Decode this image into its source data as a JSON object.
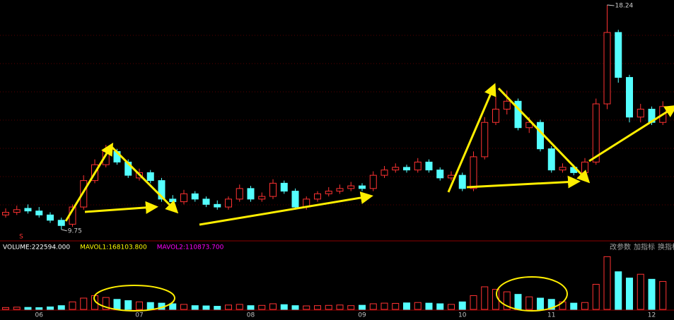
{
  "chart_data": {
    "type": "candlestick",
    "categories": [
      null,
      null,
      null,
      "06",
      null,
      null,
      null,
      null,
      null,
      null,
      null,
      null,
      "07",
      null,
      null,
      null,
      null,
      null,
      null,
      null,
      null,
      null,
      "08",
      null,
      null,
      null,
      null,
      null,
      null,
      null,
      null,
      null,
      "09",
      null,
      null,
      null,
      null,
      null,
      null,
      null,
      null,
      "10",
      null,
      null,
      null,
      null,
      null,
      null,
      null,
      "11",
      null,
      null,
      null,
      null,
      null,
      null,
      null,
      null,
      "12",
      null
    ],
    "open": [
      10.3,
      10.4,
      10.55,
      10.45,
      10.3,
      10.1,
      9.95,
      10.6,
      11.6,
      12.2,
      12.7,
      12.3,
      11.7,
      11.9,
      11.6,
      10.9,
      10.8,
      11.1,
      10.9,
      10.7,
      10.6,
      10.9,
      11.3,
      10.9,
      11.0,
      11.5,
      11.2,
      10.6,
      10.9,
      11.1,
      11.2,
      11.3,
      11.4,
      11.3,
      11.8,
      12.0,
      12.1,
      12.0,
      12.3,
      12.0,
      11.7,
      11.8,
      11.3,
      12.5,
      13.8,
      14.3,
      14.6,
      13.6,
      13.8,
      12.8,
      12.0,
      12.1,
      11.9,
      12.3,
      14.5,
      17.2,
      15.5,
      14.0,
      14.3,
      13.8
    ],
    "high": [
      10.55,
      10.65,
      10.7,
      10.6,
      10.4,
      10.2,
      10.7,
      11.8,
      12.4,
      12.95,
      12.8,
      12.4,
      12.05,
      12.0,
      11.7,
      11.05,
      11.25,
      11.2,
      11.0,
      10.85,
      11.0,
      11.45,
      11.4,
      11.15,
      11.65,
      11.6,
      11.3,
      11.0,
      11.2,
      11.35,
      11.45,
      11.55,
      11.5,
      11.95,
      12.15,
      12.25,
      12.2,
      12.45,
      12.4,
      12.1,
      11.95,
      11.9,
      12.7,
      14.0,
      14.8,
      15.0,
      14.7,
      14.0,
      13.9,
      12.9,
      12.25,
      12.2,
      12.45,
      14.7,
      18.24,
      17.3,
      15.6,
      14.5,
      14.4,
      14.6
    ],
    "low": [
      10.2,
      10.3,
      10.35,
      10.2,
      10.0,
      9.75,
      9.85,
      10.5,
      11.5,
      12.1,
      12.2,
      11.7,
      11.6,
      11.5,
      10.8,
      10.7,
      10.7,
      10.8,
      10.6,
      10.5,
      10.5,
      10.8,
      10.8,
      10.8,
      10.9,
      11.1,
      10.5,
      10.5,
      10.8,
      11.0,
      11.1,
      11.2,
      11.2,
      11.2,
      11.7,
      11.9,
      11.9,
      11.9,
      11.9,
      11.6,
      11.6,
      11.2,
      11.2,
      12.4,
      13.7,
      14.1,
      13.5,
      13.4,
      12.7,
      11.9,
      11.9,
      11.8,
      11.8,
      12.2,
      14.3,
      15.3,
      13.8,
      13.8,
      13.7,
      13.7
    ],
    "close": [
      10.4,
      10.5,
      10.45,
      10.3,
      10.1,
      9.9,
      10.6,
      11.6,
      12.2,
      12.7,
      12.3,
      11.8,
      11.9,
      11.6,
      10.9,
      10.8,
      11.1,
      10.9,
      10.7,
      10.6,
      10.9,
      11.3,
      10.9,
      11.0,
      11.5,
      11.2,
      10.6,
      10.9,
      11.1,
      11.2,
      11.3,
      11.4,
      11.3,
      11.8,
      12.0,
      12.1,
      12.0,
      12.3,
      12.0,
      11.7,
      11.8,
      11.3,
      12.5,
      13.8,
      14.3,
      14.6,
      13.6,
      13.8,
      12.8,
      12.0,
      12.1,
      11.9,
      12.3,
      14.5,
      17.2,
      15.5,
      14.0,
      14.3,
      13.8,
      14.4
    ],
    "volume": [
      15000,
      18000,
      16000,
      14000,
      20000,
      30000,
      60000,
      90000,
      110000,
      95000,
      80000,
      70000,
      60000,
      55000,
      50000,
      45000,
      40000,
      30000,
      28000,
      25000,
      35000,
      40000,
      30000,
      32000,
      45000,
      38000,
      30000,
      28000,
      30000,
      32000,
      35000,
      30000,
      33000,
      45000,
      50000,
      48000,
      52000,
      55000,
      50000,
      45000,
      40000,
      60000,
      110000,
      180000,
      160000,
      140000,
      120000,
      100000,
      90000,
      80000,
      60000,
      50000,
      55000,
      200000,
      420000,
      300000,
      250000,
      280000,
      240000,
      222594
    ],
    "ylim": [
      9.4,
      18.4
    ],
    "vlim": [
      0,
      450000
    ],
    "up_color": "#ff3232",
    "down_color": "#54ffff",
    "low_label": "9.75",
    "high_label": "18.24",
    "marker": "S",
    "indicators": [
      {
        "text": "VOLUME:222594.000",
        "color": "#ffffff"
      },
      {
        "text": "MAVOL1:168103.800",
        "color": "#ffff00"
      },
      {
        "text": "MAVOL2:110873.700",
        "color": "#ff00ff"
      }
    ],
    "buttons": [
      "改参数",
      "加指标",
      "换指标"
    ]
  }
}
